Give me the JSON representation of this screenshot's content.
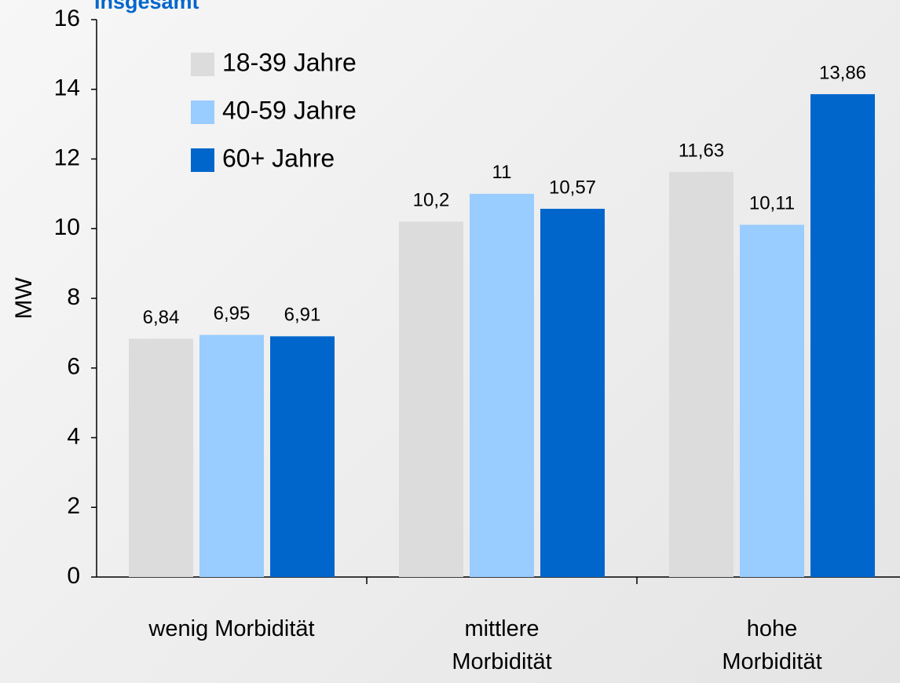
{
  "chart_data": {
    "type": "bar",
    "title": "Insgesamt",
    "y_label": "MW",
    "categories": [
      "wenig Morbidität",
      "mittlere\nMorbidität",
      "hohe Morbidität"
    ],
    "series": [
      {
        "name": "18-39 Jahre",
        "color": "#dcdcdc",
        "values": [
          6.84,
          10.2,
          11.63
        ],
        "value_labels": [
          "6,84",
          "10,2",
          "11,63"
        ]
      },
      {
        "name": "40-59 Jahre",
        "color": "#99ccff",
        "values": [
          6.95,
          11,
          10.11
        ],
        "value_labels": [
          "6,95",
          "11",
          "10,11"
        ]
      },
      {
        "name": "60+ Jahre",
        "color": "#0066cc",
        "values": [
          6.91,
          10.57,
          13.86
        ],
        "value_labels": [
          "6,91",
          "10,57",
          "13,86"
        ]
      }
    ],
    "ylim": [
      0,
      16
    ],
    "yticks": [
      0,
      2,
      4,
      6,
      8,
      10,
      12,
      14,
      16
    ],
    "grid": false,
    "legend": "upper left"
  }
}
